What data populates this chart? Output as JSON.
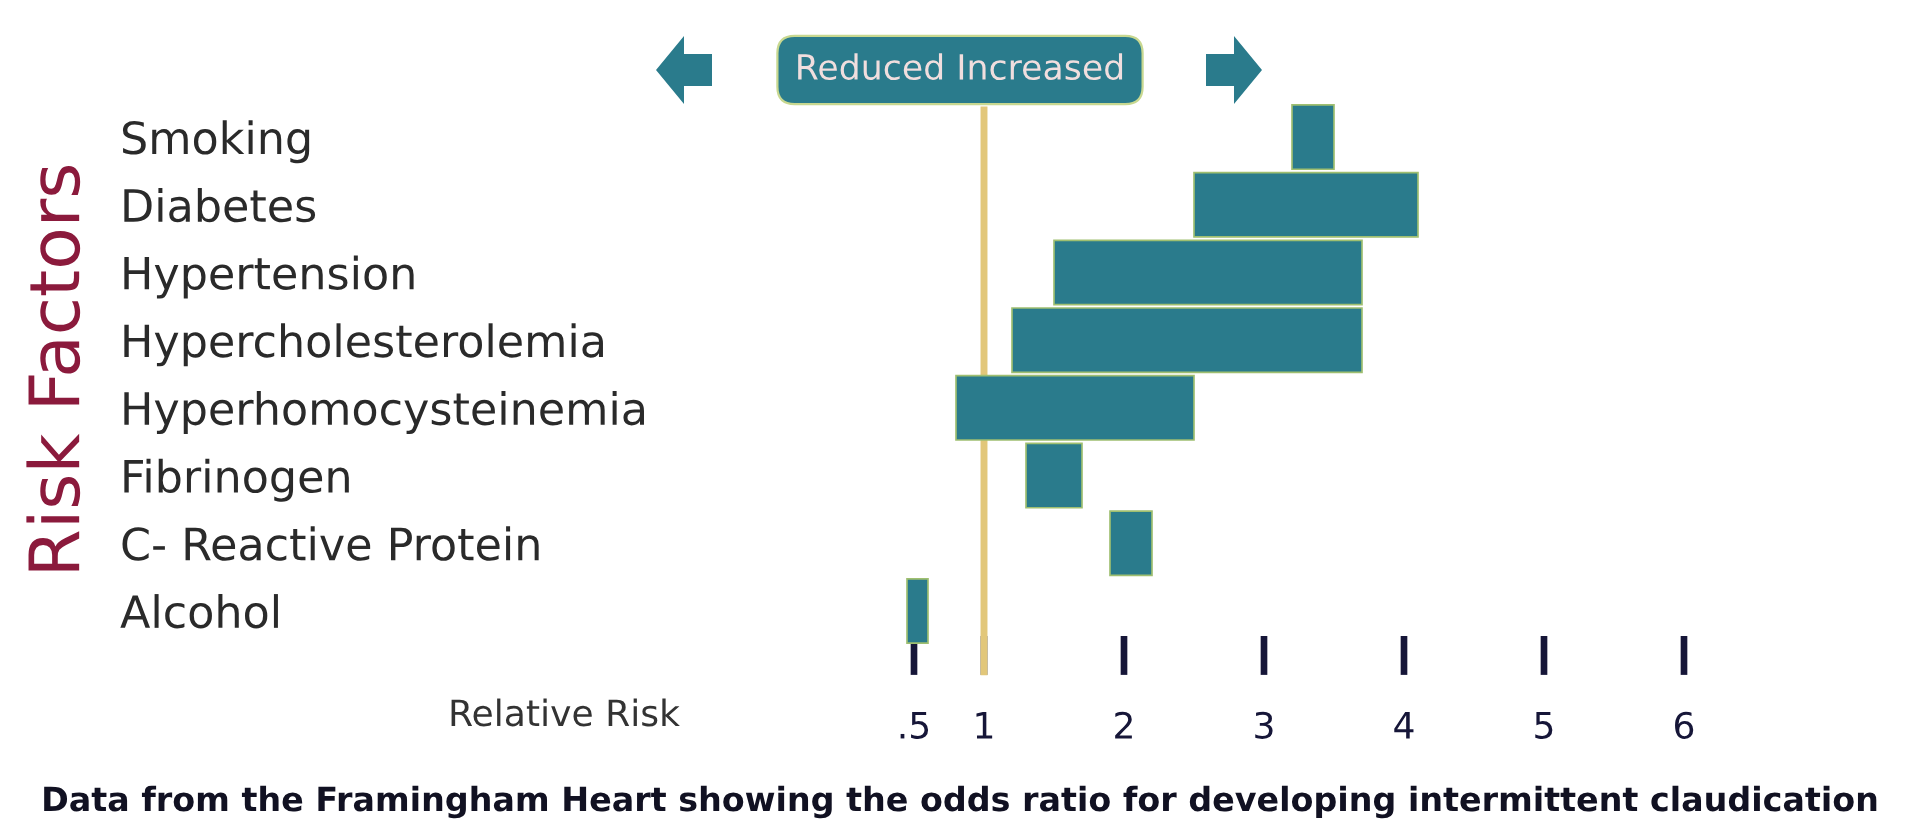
{
  "chart_data": {
    "type": "bar",
    "orientation": "horizontal",
    "categories": [
      "Smoking",
      "Diabetes",
      "Hypertension",
      "Hypercholesterolemia",
      "Hyperhomocysteinemia",
      "Fibrinogen",
      "C- Reactive Protein",
      "Alcohol"
    ],
    "base": [
      3.2,
      2.5,
      1.5,
      1.2,
      0.8,
      1.3,
      1.9,
      0.45
    ],
    "values": [
      0.3,
      1.6,
      2.2,
      2.5,
      1.7,
      0.4,
      0.3,
      0.15
    ],
    "color": "#2a7b8c",
    "xlim": [
      0.4,
      6
    ],
    "xticks": [
      {
        "value": 0.5,
        "label": ".5"
      },
      1,
      2,
      3,
      4,
      5,
      6
    ],
    "xlabel": "Relative Risk",
    "ylabel": "Risk Factors",
    "ref_lines": [
      {
        "axis": "x",
        "value": 1,
        "color": "#e2c77a"
      }
    ],
    "annotations": [
      "Reduced Increased",
      "Data from the Framingham Heart showing the odds ratio for developing intermittent claudication"
    ],
    "grid": false
  }
}
